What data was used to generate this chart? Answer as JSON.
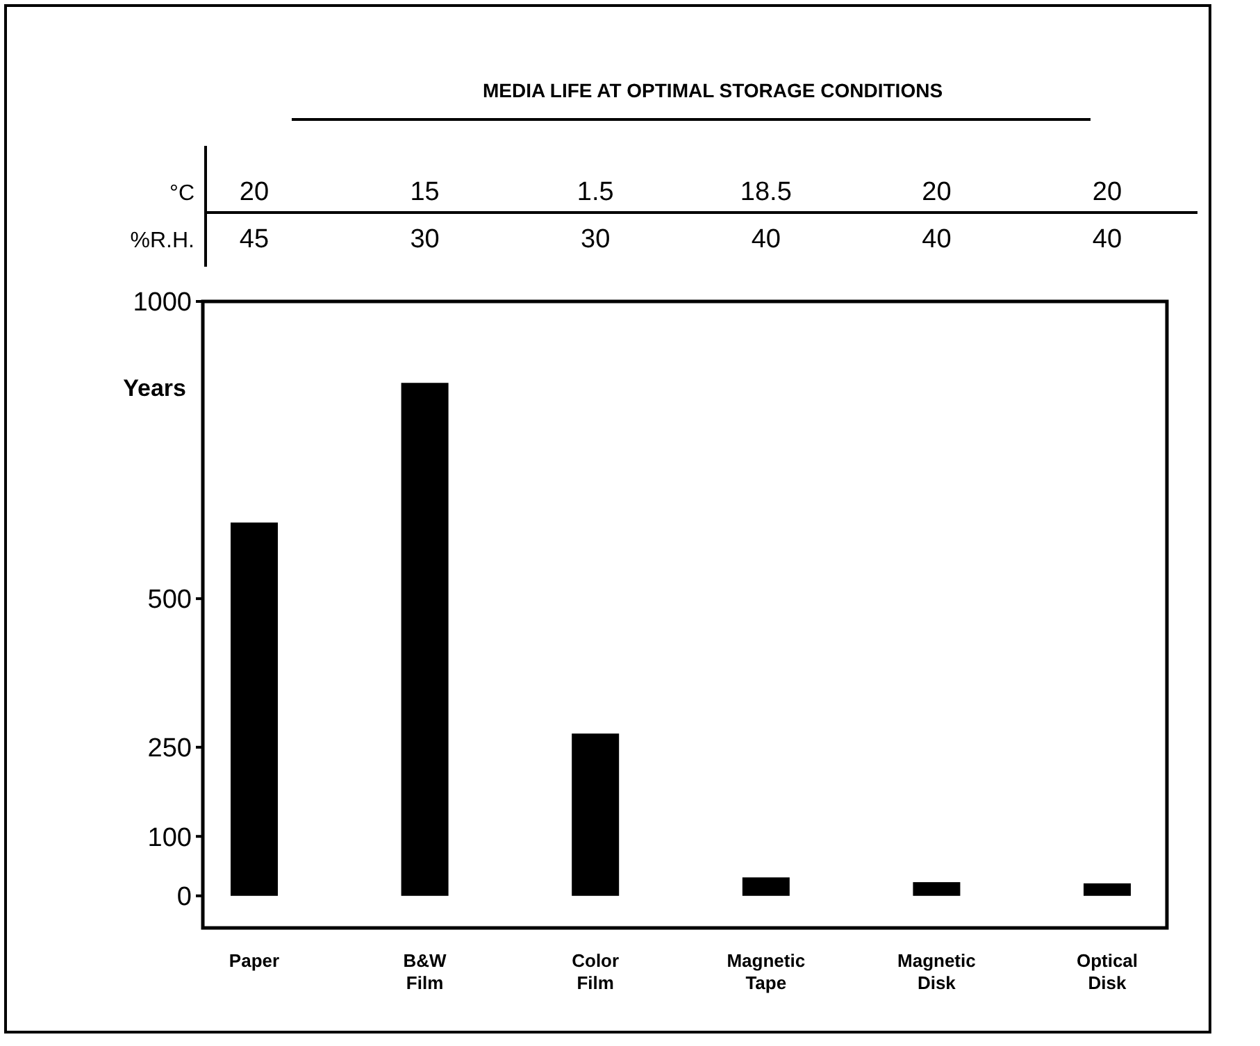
{
  "chart_data": {
    "type": "bar",
    "title": "MEDIA LIFE AT OPTIMAL STORAGE CONDITIONS",
    "ylabel": "Years",
    "categories": [
      "Paper",
      "B&W Film",
      "Color Film",
      "Magnetic Tape",
      "Magnetic Disk",
      "Optical Disk"
    ],
    "values": [
      628,
      863,
      273,
      31,
      23,
      21
    ],
    "color": "#000000",
    "ylim": [
      -54,
      1000
    ],
    "yticks": [
      0,
      100,
      250,
      500,
      1000
    ],
    "grid": false,
    "annotations": [
      "°C",
      "20",
      "15",
      "1.5",
      "18.5",
      "20",
      "20",
      "%R.H.",
      "45",
      "30",
      "30",
      "40",
      "40",
      "40"
    ]
  }
}
